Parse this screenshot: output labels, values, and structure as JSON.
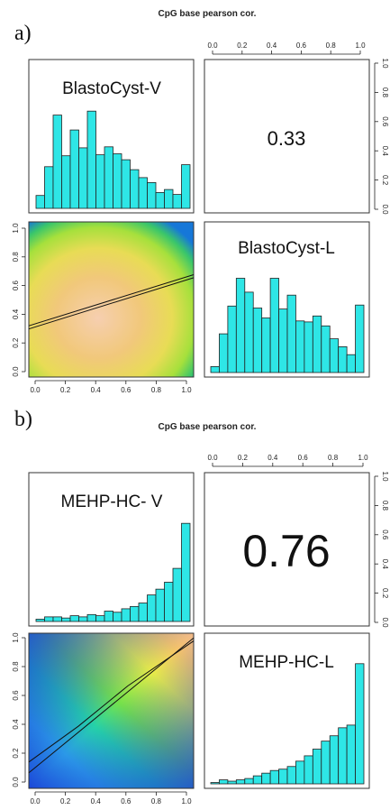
{
  "chart_data": [
    {
      "panel_label": "a)",
      "title": "CpG base pearson cor.",
      "type": "pairs",
      "variables": [
        "BlastoCyst-V",
        "BlastoCyst-L"
      ],
      "correlation": "0.33",
      "axis_ticks": [
        "0.0",
        "0.2",
        "0.4",
        "0.6",
        "0.8",
        "1.0"
      ],
      "xlim": [
        0,
        1
      ],
      "ylim": [
        0,
        1
      ],
      "histograms": [
        {
          "name": "BlastoCyst-V",
          "relative_heights": [
            0.13,
            0.42,
            0.94,
            0.53,
            0.79,
            0.61,
            0.98,
            0.54,
            0.62,
            0.55,
            0.49,
            0.39,
            0.31,
            0.26,
            0.16,
            0.19,
            0.14,
            0.44
          ]
        },
        {
          "name": "BlastoCyst-L",
          "relative_heights": [
            0.06,
            0.39,
            0.67,
            0.95,
            0.81,
            0.65,
            0.55,
            0.95,
            0.64,
            0.78,
            0.52,
            0.51,
            0.57,
            0.47,
            0.34,
            0.26,
            0.18,
            0.68
          ]
        }
      ],
      "scatter_density": {
        "fit_lines": [
          [
            [
              0,
              0.31
            ],
            [
              1,
              0.64
            ]
          ],
          [
            [
              0,
              0.33
            ],
            [
              1,
              0.66
            ]
          ]
        ]
      }
    },
    {
      "panel_label": "b)",
      "title": "CpG base pearson cor.",
      "type": "pairs",
      "variables": [
        "MEHP-HC- V",
        "MEHP-HC-L"
      ],
      "correlation": "0.76",
      "axis_ticks": [
        "0.0",
        "0.2",
        "0.4",
        "0.6",
        "0.8",
        "1.0"
      ],
      "xlim": [
        0,
        1
      ],
      "ylim": [
        0,
        1
      ],
      "histograms": [
        {
          "name": "MEHP-HC- V",
          "relative_heights": [
            0.02,
            0.04,
            0.04,
            0.03,
            0.05,
            0.04,
            0.06,
            0.05,
            0.09,
            0.08,
            0.11,
            0.13,
            0.16,
            0.23,
            0.28,
            0.34,
            0.46,
            0.85
          ]
        },
        {
          "name": "MEHP-HC-L",
          "relative_heights": [
            0.01,
            0.03,
            0.02,
            0.03,
            0.04,
            0.06,
            0.08,
            0.1,
            0.11,
            0.13,
            0.17,
            0.21,
            0.26,
            0.32,
            0.36,
            0.42,
            0.44,
            0.9
          ]
        }
      ],
      "scatter_density": {
        "fit_lines": [
          [
            [
              0,
              0.1
            ],
            [
              1,
              0.97
            ]
          ],
          [
            [
              0,
              0.17
            ],
            [
              0.3,
              0.4
            ],
            [
              0.6,
              0.66
            ],
            [
              1,
              0.95
            ]
          ]
        ]
      }
    }
  ]
}
